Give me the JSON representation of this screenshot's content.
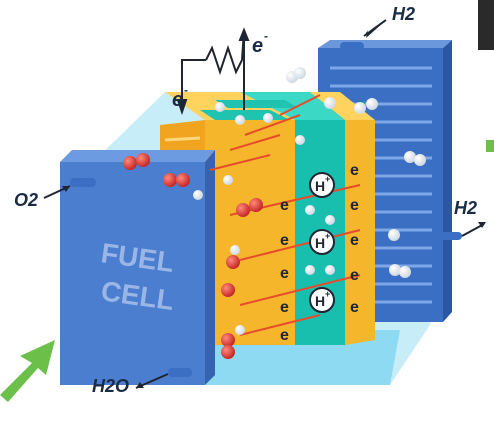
{
  "labels": {
    "h2_top": "H2",
    "h2_right": "H2",
    "o2": "O2",
    "h2o": "H2O",
    "e_left": "e",
    "e_right": "e",
    "fuel": "FUEL",
    "cell": "CELL",
    "electron": "e",
    "proton": "H",
    "minus": "-",
    "plus": "+"
  },
  "colors": {
    "plate": "#4b7ecf",
    "plate_dark": "#3463b0",
    "cyan_layer": "#20c8b5",
    "yellow_layer": "#f5b52e",
    "water": "#aee6f7",
    "arrow_green": "#6cc04a",
    "electron_arrow": "#e84a2c",
    "oxygen": "#d93a3a"
  },
  "icons": [
    "resistor-icon",
    "proton-icon",
    "electron-icon",
    "oxygen-molecule-icon",
    "hydrogen-molecule-icon",
    "green-arrow-icon"
  ]
}
